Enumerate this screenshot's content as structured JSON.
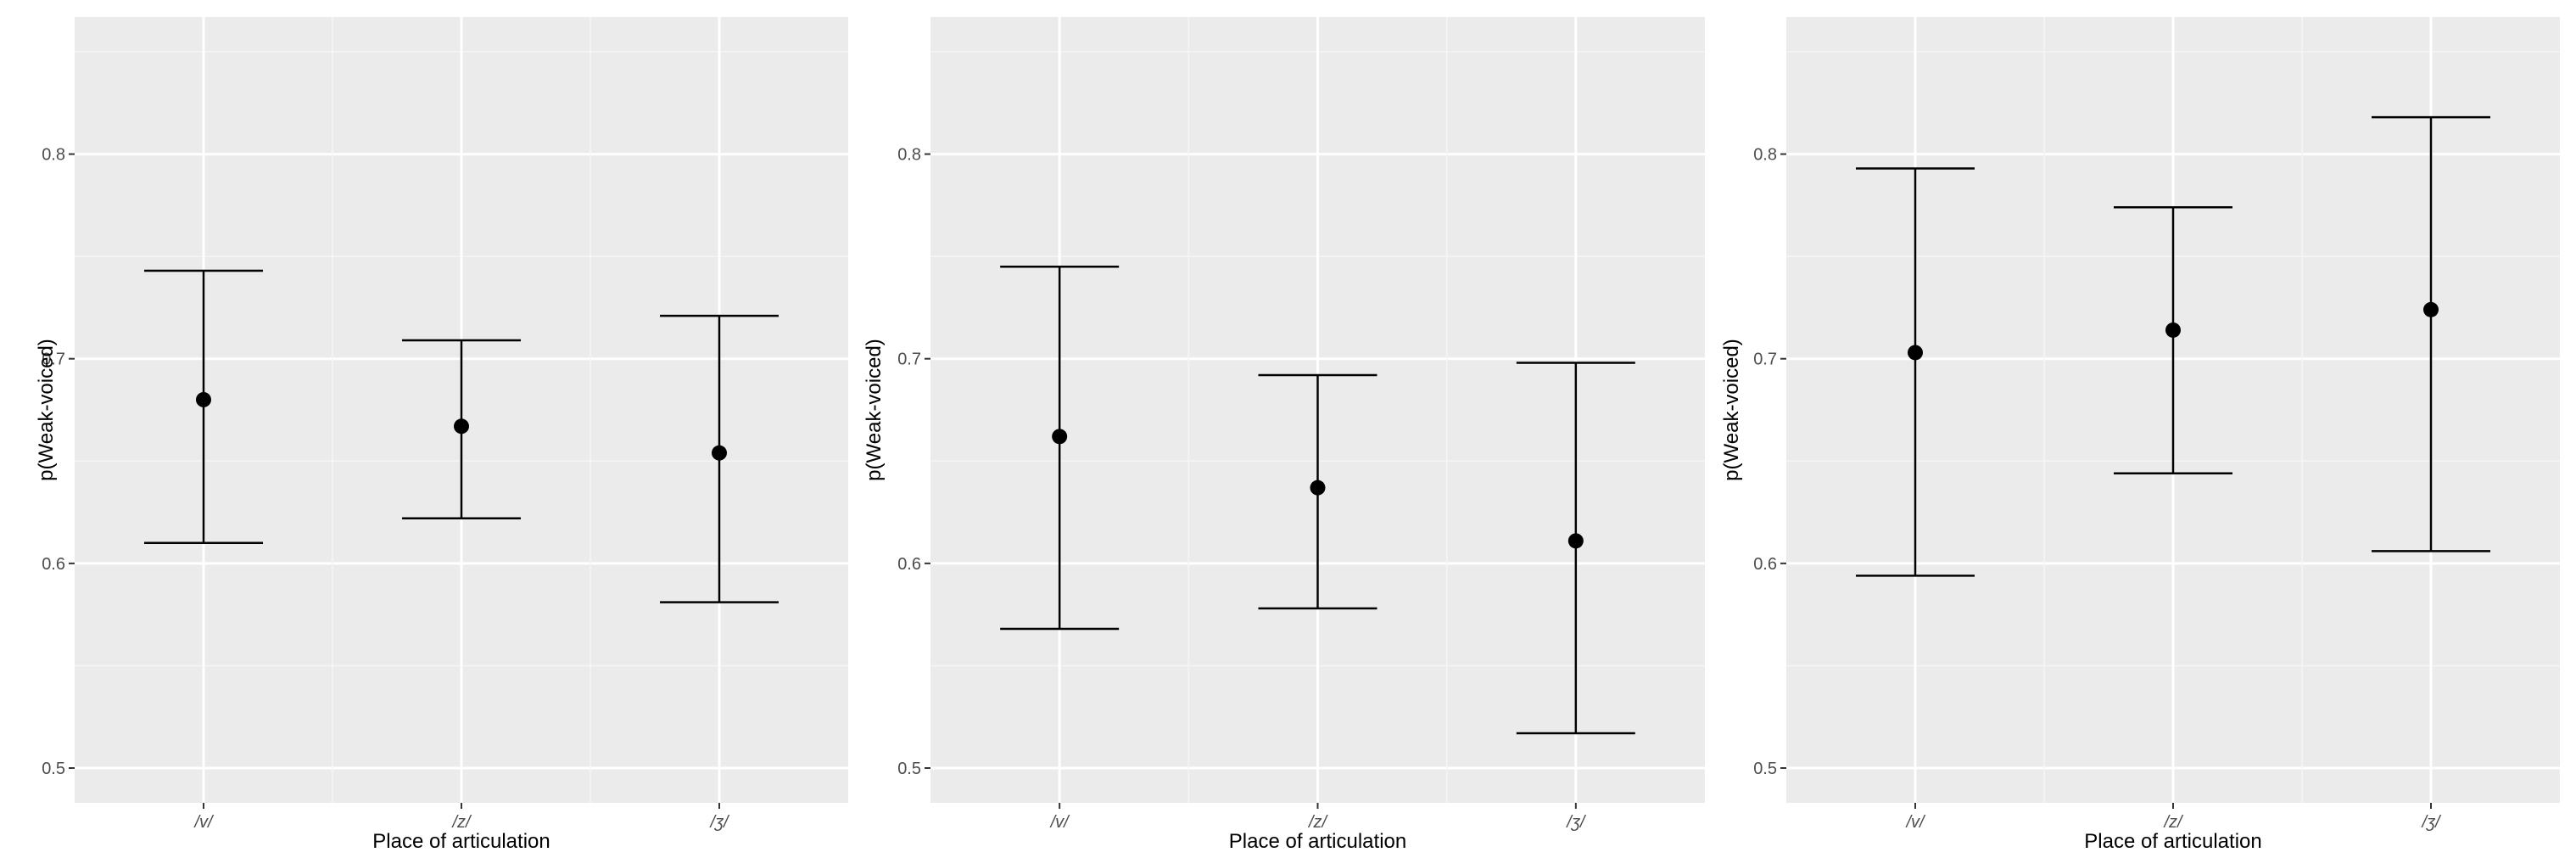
{
  "chart_data": [
    {
      "type": "errorbar",
      "xlabel": "Place of articulation",
      "ylabel": "p(Weak-voiced)",
      "categories": [
        "/v/",
        "/z/",
        "/ʒ/"
      ],
      "y_ticks": [
        "0.5",
        "0.6",
        "0.7",
        "0.8"
      ],
      "ylim": [
        0.483,
        0.867
      ],
      "grid": true,
      "points": [
        {
          "x": "/v/",
          "y": 0.68,
          "ymin": 0.61,
          "ymax": 0.743
        },
        {
          "x": "/z/",
          "y": 0.667,
          "ymin": 0.622,
          "ymax": 0.709
        },
        {
          "x": "/ʒ/",
          "y": 0.654,
          "ymin": 0.581,
          "ymax": 0.721
        }
      ]
    },
    {
      "type": "errorbar",
      "xlabel": "Place of articulation",
      "ylabel": "p(Weak-voiced)",
      "categories": [
        "/v/",
        "/z/",
        "/ʒ/"
      ],
      "y_ticks": [
        "0.5",
        "0.6",
        "0.7",
        "0.8"
      ],
      "ylim": [
        0.483,
        0.867
      ],
      "grid": true,
      "points": [
        {
          "x": "/v/",
          "y": 0.662,
          "ymin": 0.568,
          "ymax": 0.745
        },
        {
          "x": "/z/",
          "y": 0.637,
          "ymin": 0.578,
          "ymax": 0.692
        },
        {
          "x": "/ʒ/",
          "y": 0.611,
          "ymin": 0.517,
          "ymax": 0.698
        }
      ]
    },
    {
      "type": "errorbar",
      "xlabel": "Place of articulation",
      "ylabel": "p(Weak-voiced)",
      "categories": [
        "/v/",
        "/z/",
        "/ʒ/"
      ],
      "y_ticks": [
        "0.5",
        "0.6",
        "0.7",
        "0.8"
      ],
      "ylim": [
        0.483,
        0.867
      ],
      "grid": true,
      "points": [
        {
          "x": "/v/",
          "y": 0.703,
          "ymin": 0.594,
          "ymax": 0.793
        },
        {
          "x": "/z/",
          "y": 0.714,
          "ymin": 0.644,
          "ymax": 0.774
        },
        {
          "x": "/ʒ/",
          "y": 0.724,
          "ymin": 0.606,
          "ymax": 0.818
        }
      ]
    }
  ]
}
